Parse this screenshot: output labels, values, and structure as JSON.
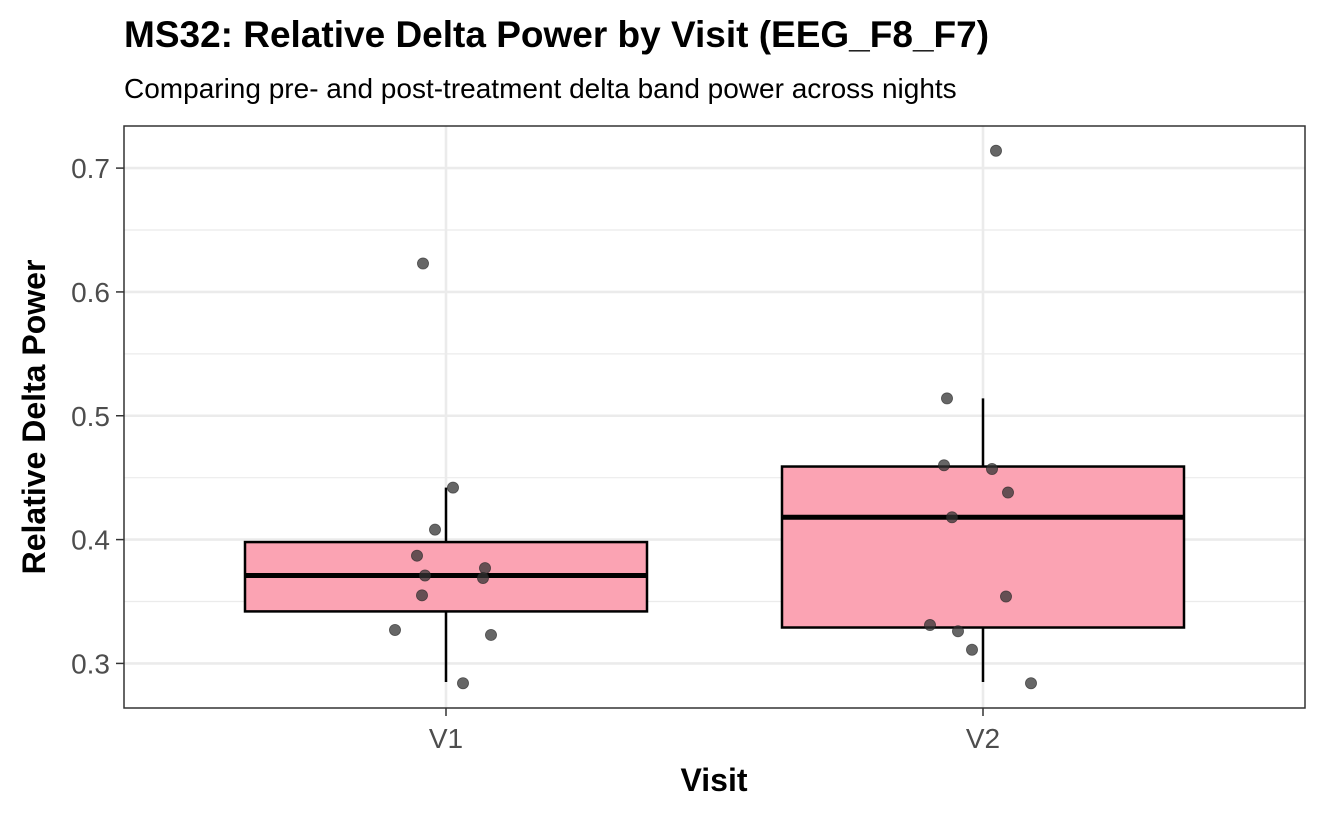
{
  "chart_data": {
    "type": "box",
    "title": "MS32: Relative Delta Power by Visit (EEG_F8_F7)",
    "subtitle": "Comparing pre- and post-treatment delta band power across nights",
    "xlabel": "Visit",
    "ylabel": "Relative Delta Power",
    "categories": [
      "V1",
      "V2"
    ],
    "ylim": [
      0.264,
      0.734
    ],
    "yticks": [
      0.3,
      0.4,
      0.5,
      0.6,
      0.7
    ],
    "ytick_labels": [
      "0.3",
      "0.4",
      "0.5",
      "0.6",
      "0.7"
    ],
    "grid": true,
    "boxes": [
      {
        "category": "V1",
        "q1": 0.342,
        "median": 0.371,
        "q3": 0.398,
        "whisker_low": 0.285,
        "whisker_high": 0.442
      },
      {
        "category": "V2",
        "q1": 0.329,
        "median": 0.418,
        "q3": 0.459,
        "whisker_low": 0.285,
        "whisker_high": 0.514
      }
    ],
    "points": [
      {
        "category": "V1",
        "values": [
          0.623,
          0.442,
          0.408,
          0.387,
          0.377,
          0.371,
          0.369,
          0.355,
          0.327,
          0.323,
          0.284
        ]
      },
      {
        "category": "V2",
        "values": [
          0.714,
          0.514,
          0.46,
          0.457,
          0.438,
          0.418,
          0.354,
          0.331,
          0.326,
          0.311,
          0.284
        ]
      }
    ],
    "colors": {
      "box_fill": "#FBA3B3",
      "box_stroke": "#000000",
      "point": "#333333",
      "grid": "#EBEBEB"
    }
  }
}
